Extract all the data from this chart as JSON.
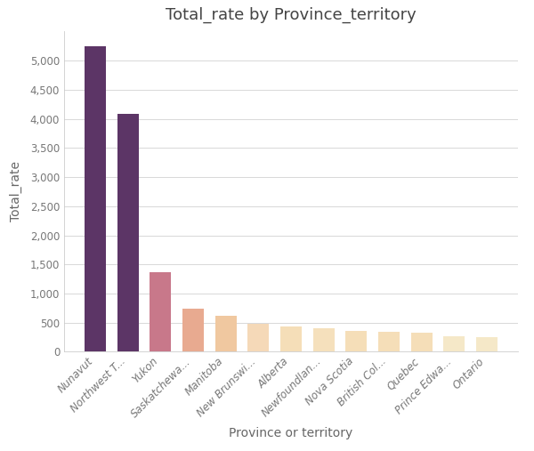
{
  "title": "Total_rate by Province_territory",
  "xlabel": "Province or territory",
  "ylabel": "Total_rate",
  "categories": [
    "Nunavut",
    "Northwest T...",
    "Yukon",
    "Saskatchewa...",
    "Manitoba",
    "New Brunswi...",
    "Alberta",
    "Newfoundlan...",
    "Nova Scotia",
    "British Col...",
    "Quebec",
    "Prince Edwa...",
    "Ontario"
  ],
  "values": [
    5250,
    4090,
    1360,
    740,
    620,
    480,
    430,
    400,
    365,
    345,
    335,
    270,
    245
  ],
  "bar_colors": [
    "#5c3566",
    "#5c3566",
    "#c8788a",
    "#e8aa90",
    "#f0c8a0",
    "#f5d9b8",
    "#f5deb8",
    "#f5e0bc",
    "#f5deb8",
    "#f5deb8",
    "#f5deb8",
    "#f5e8c8",
    "#f5e8c8"
  ],
  "ylim": [
    0,
    5500
  ],
  "yticks": [
    0,
    500,
    1000,
    1500,
    2000,
    2500,
    3000,
    3500,
    4000,
    4500,
    5000
  ],
  "background_color": "#ffffff",
  "grid_color": "#d8d8d8",
  "title_fontsize": 13,
  "axis_label_fontsize": 10,
  "tick_fontsize": 8.5
}
